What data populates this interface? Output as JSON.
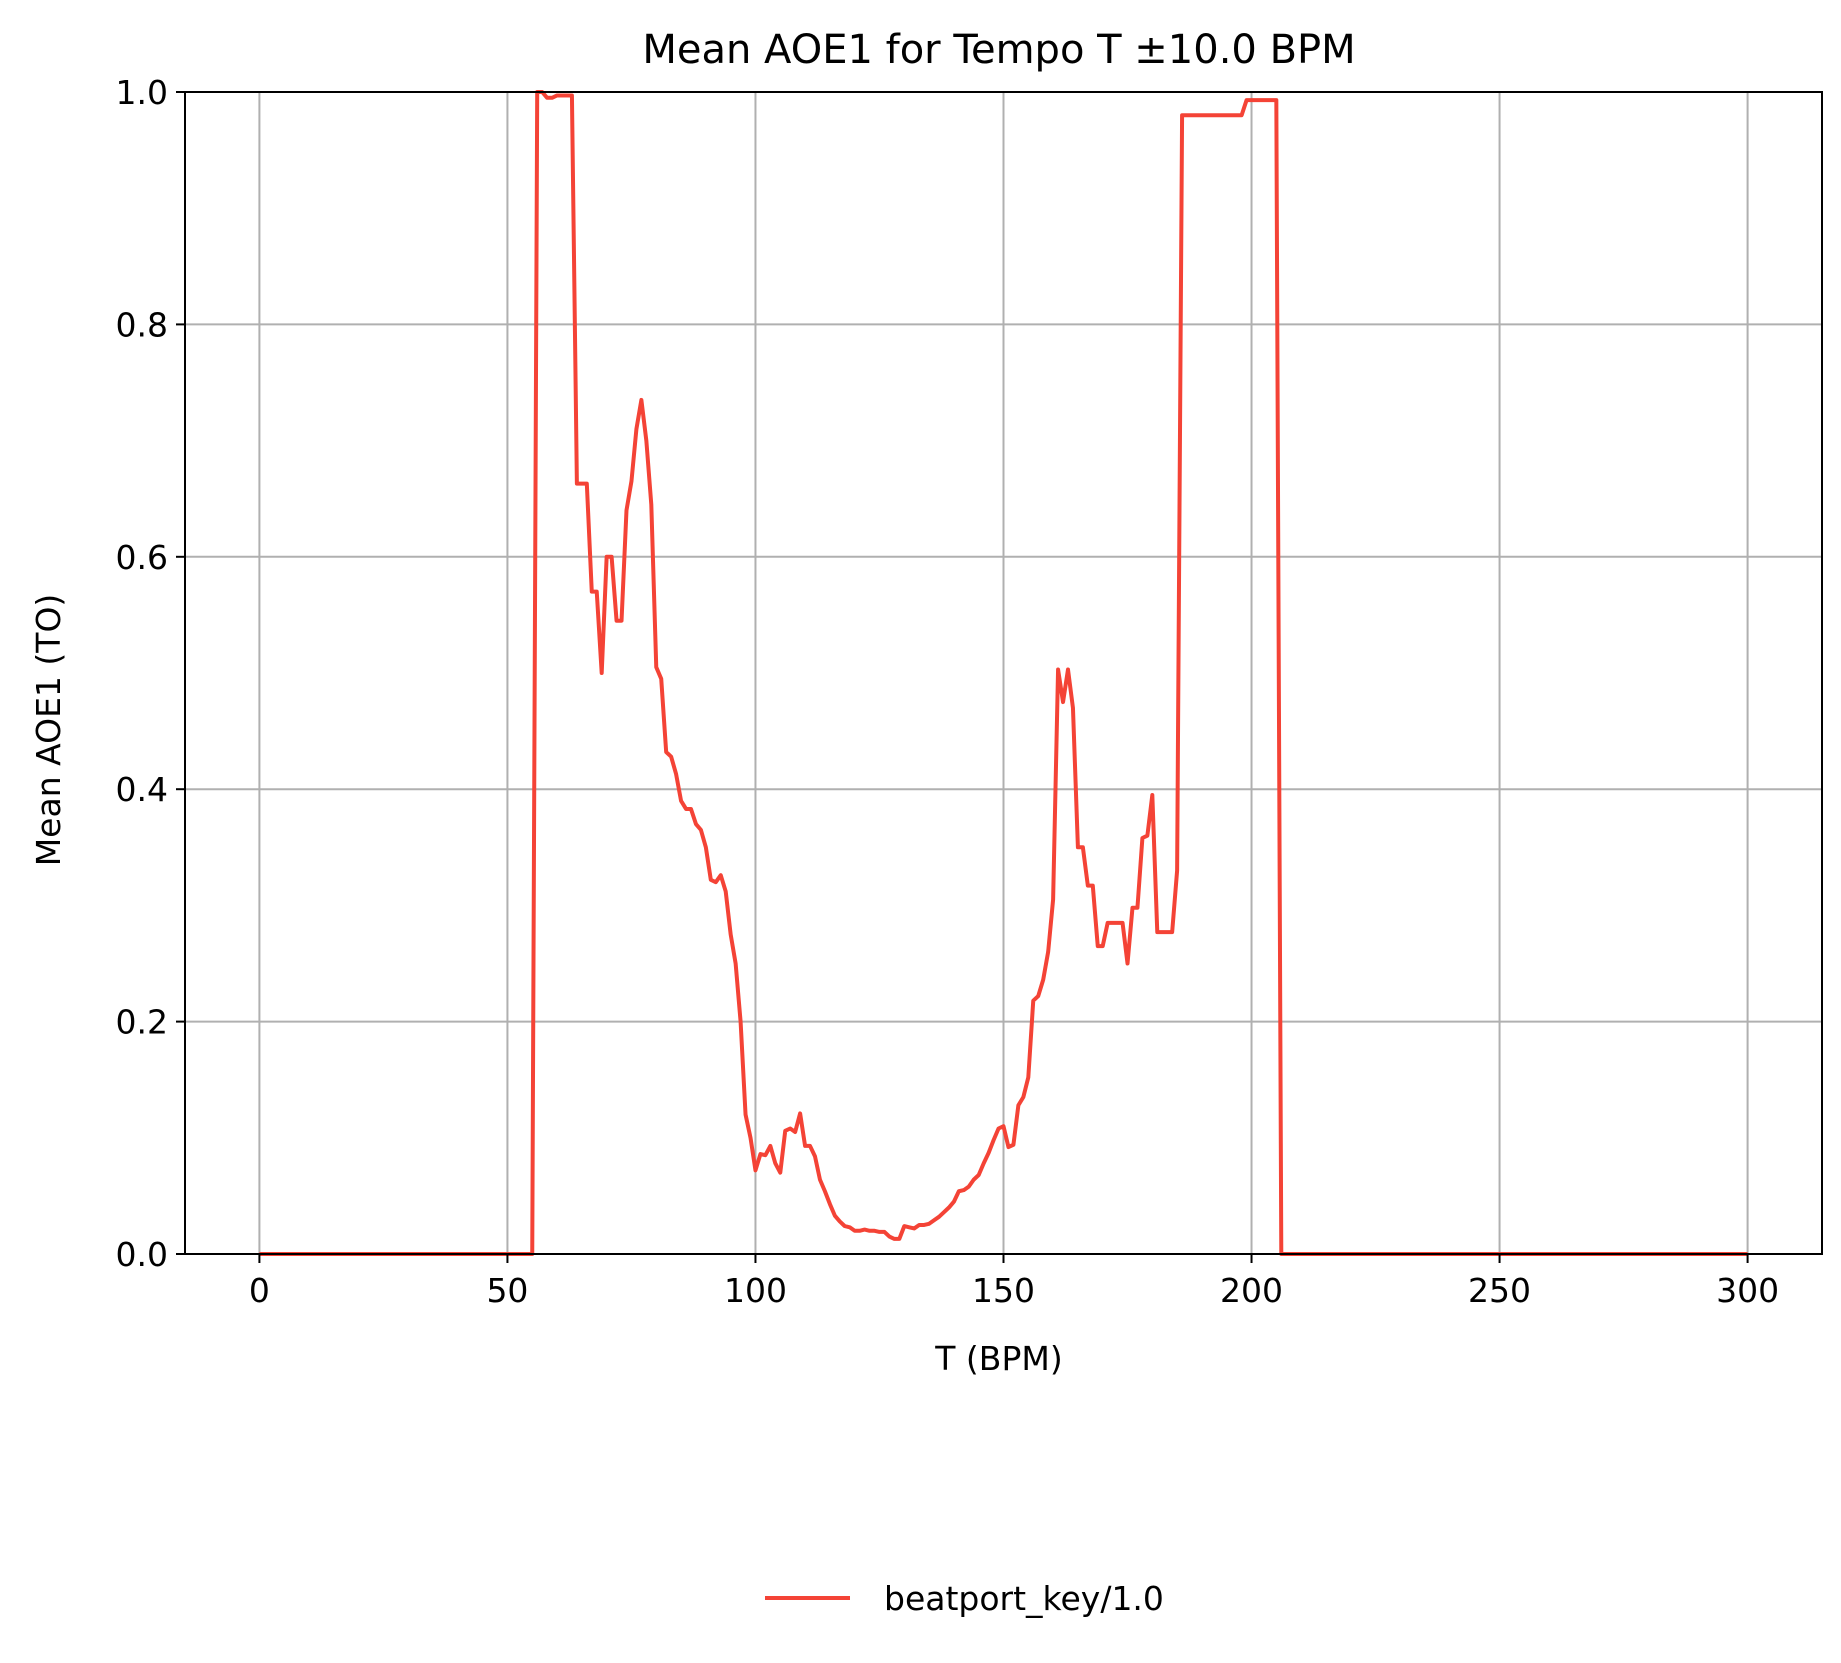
{
  "chart_data": {
    "type": "line",
    "title": "Mean AOE1 for Tempo T ±10.0 BPM",
    "xlabel": "T (BPM)",
    "ylabel": "Mean AOE1 (TO)",
    "xlim": [
      -15,
      315
    ],
    "ylim": [
      0.0,
      1.0
    ],
    "xticks": [
      0,
      50,
      100,
      150,
      200,
      250,
      300
    ],
    "xtick_labels": [
      "0",
      "50",
      "100",
      "150",
      "200",
      "250",
      "300"
    ],
    "yticks": [
      0.0,
      0.2,
      0.4,
      0.6,
      0.8,
      1.0
    ],
    "ytick_labels": [
      "0.0",
      "0.2",
      "0.4",
      "0.6",
      "0.8",
      "1.0"
    ],
    "grid": true,
    "legend_position": "bottom-center",
    "series": [
      {
        "name": "beatport_key/1.0",
        "color": "#f44336",
        "points": [
          [
            0,
            0.0
          ],
          [
            55,
            0.0
          ],
          [
            56,
            1.0
          ],
          [
            57,
            1.0
          ],
          [
            58,
            0.995
          ],
          [
            59,
            0.995
          ],
          [
            60,
            0.997
          ],
          [
            61,
            0.997
          ],
          [
            62,
            0.997
          ],
          [
            63,
            0.997
          ],
          [
            64,
            0.663
          ],
          [
            65,
            0.663
          ],
          [
            66,
            0.663
          ],
          [
            67,
            0.57
          ],
          [
            68,
            0.57
          ],
          [
            69,
            0.5
          ],
          [
            70,
            0.6
          ],
          [
            71,
            0.6
          ],
          [
            72,
            0.545
          ],
          [
            73,
            0.545
          ],
          [
            74,
            0.64
          ],
          [
            75,
            0.665
          ],
          [
            76,
            0.71
          ],
          [
            77,
            0.735
          ],
          [
            78,
            0.7
          ],
          [
            79,
            0.645
          ],
          [
            80,
            0.505
          ],
          [
            81,
            0.495
          ],
          [
            82,
            0.432
          ],
          [
            83,
            0.428
          ],
          [
            84,
            0.413
          ],
          [
            85,
            0.39
          ],
          [
            86,
            0.383
          ],
          [
            87,
            0.383
          ],
          [
            88,
            0.37
          ],
          [
            89,
            0.365
          ],
          [
            90,
            0.35
          ],
          [
            91,
            0.322
          ],
          [
            92,
            0.32
          ],
          [
            93,
            0.326
          ],
          [
            94,
            0.312
          ],
          [
            95,
            0.275
          ],
          [
            96,
            0.25
          ],
          [
            97,
            0.2
          ],
          [
            98,
            0.12
          ],
          [
            99,
            0.1
          ],
          [
            100,
            0.072
          ],
          [
            101,
            0.086
          ],
          [
            102,
            0.085
          ],
          [
            103,
            0.093
          ],
          [
            104,
            0.078
          ],
          [
            105,
            0.07
          ],
          [
            106,
            0.106
          ],
          [
            107,
            0.108
          ],
          [
            108,
            0.105
          ],
          [
            109,
            0.121
          ],
          [
            110,
            0.093
          ],
          [
            111,
            0.093
          ],
          [
            112,
            0.084
          ],
          [
            113,
            0.064
          ],
          [
            114,
            0.054
          ],
          [
            115,
            0.043
          ],
          [
            116,
            0.033
          ],
          [
            117,
            0.028
          ],
          [
            118,
            0.024
          ],
          [
            119,
            0.023
          ],
          [
            120,
            0.02
          ],
          [
            121,
            0.02
          ],
          [
            122,
            0.021
          ],
          [
            123,
            0.02
          ],
          [
            124,
            0.02
          ],
          [
            125,
            0.019
          ],
          [
            126,
            0.019
          ],
          [
            127,
            0.015
          ],
          [
            128,
            0.013
          ],
          [
            129,
            0.013
          ],
          [
            130,
            0.024
          ],
          [
            131,
            0.023
          ],
          [
            132,
            0.022
          ],
          [
            133,
            0.025
          ],
          [
            134,
            0.025
          ],
          [
            135,
            0.026
          ],
          [
            136,
            0.029
          ],
          [
            137,
            0.032
          ],
          [
            138,
            0.036
          ],
          [
            139,
            0.04
          ],
          [
            140,
            0.045
          ],
          [
            141,
            0.054
          ],
          [
            142,
            0.055
          ],
          [
            143,
            0.058
          ],
          [
            144,
            0.064
          ],
          [
            145,
            0.068
          ],
          [
            146,
            0.078
          ],
          [
            147,
            0.087
          ],
          [
            148,
            0.098
          ],
          [
            149,
            0.108
          ],
          [
            150,
            0.11
          ],
          [
            151,
            0.092
          ],
          [
            152,
            0.094
          ],
          [
            153,
            0.128
          ],
          [
            154,
            0.135
          ],
          [
            155,
            0.152
          ],
          [
            156,
            0.218
          ],
          [
            157,
            0.222
          ],
          [
            158,
            0.236
          ],
          [
            159,
            0.26
          ],
          [
            160,
            0.305
          ],
          [
            161,
            0.503
          ],
          [
            162,
            0.475
          ],
          [
            163,
            0.503
          ],
          [
            164,
            0.47
          ],
          [
            165,
            0.35
          ],
          [
            166,
            0.35
          ],
          [
            167,
            0.317
          ],
          [
            168,
            0.317
          ],
          [
            169,
            0.265
          ],
          [
            170,
            0.265
          ],
          [
            171,
            0.285
          ],
          [
            172,
            0.285
          ],
          [
            173,
            0.285
          ],
          [
            174,
            0.285
          ],
          [
            175,
            0.25
          ],
          [
            176,
            0.298
          ],
          [
            177,
            0.298
          ],
          [
            178,
            0.358
          ],
          [
            179,
            0.36
          ],
          [
            180,
            0.395
          ],
          [
            181,
            0.277
          ],
          [
            182,
            0.277
          ],
          [
            183,
            0.277
          ],
          [
            184,
            0.277
          ],
          [
            185,
            0.33
          ],
          [
            186,
            0.98
          ],
          [
            187,
            0.98
          ],
          [
            190,
            0.98
          ],
          [
            195,
            0.98
          ],
          [
            198,
            0.98
          ],
          [
            199,
            0.993
          ],
          [
            200,
            0.993
          ],
          [
            203,
            0.993
          ],
          [
            205,
            0.993
          ],
          [
            206,
            0.0
          ],
          [
            207,
            0.0
          ],
          [
            300,
            0.0
          ]
        ]
      }
    ]
  }
}
